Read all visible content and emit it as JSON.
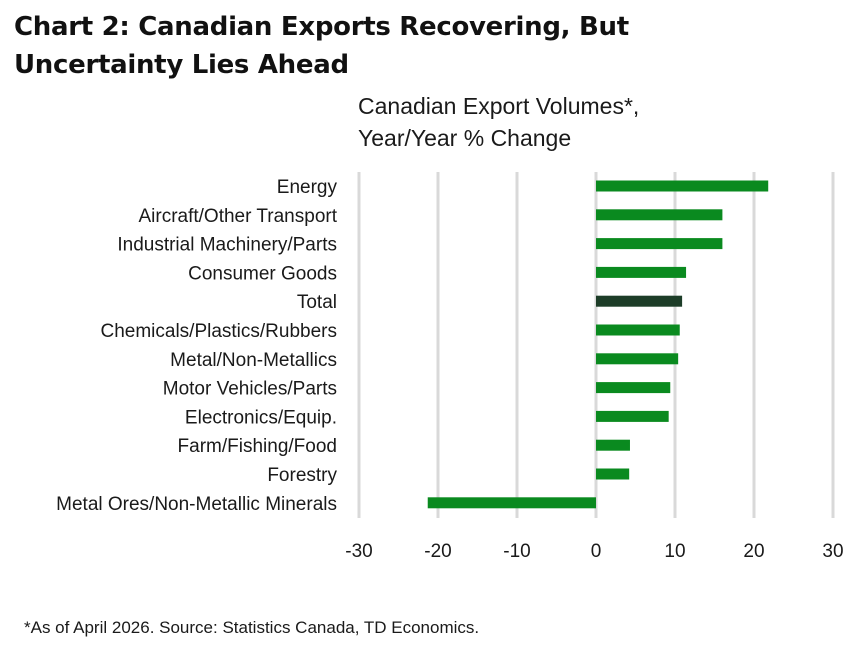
{
  "title_lines": [
    "Chart 2: Canadian Exports Recovering, But",
    "Uncertainty Lies Ahead"
  ],
  "subtitle_lines": [
    "Canadian Export Volumes*,",
    "Year/Year % Change"
  ],
  "footnote": "*As of April 2026. Source: Statistics Canada, TD Economics.",
  "colors": {
    "bar": "#0a8a1f",
    "highlight": "#1d3d28",
    "grid": "#d9d9d9"
  },
  "chart_data": {
    "type": "bar",
    "orientation": "horizontal",
    "title": "Chart 2: Canadian Exports Recovering, But Uncertainty Lies Ahead",
    "subtitle": "Canadian Export Volumes*, Year/Year % Change",
    "categories": [
      "Energy",
      "Aircraft/Other Transport",
      "Industrial Machinery/Parts",
      "Consumer Goods",
      "Total",
      "Chemicals/Plastics/Rubbers",
      "Metal/Non-Metallics",
      "Motor Vehicles/Parts",
      "Electronics/Equip.",
      "Farm/Fishing/Food",
      "Forestry",
      "Metal Ores/Non-Metallic Minerals"
    ],
    "values": [
      21.8,
      16.0,
      16.0,
      11.4,
      10.9,
      10.6,
      10.4,
      9.4,
      9.2,
      4.3,
      4.2,
      -21.3
    ],
    "highlight": "Total",
    "xlim": [
      -30,
      30
    ],
    "xticks": [
      -30,
      -20,
      -10,
      0,
      10,
      20,
      30
    ],
    "grid": true,
    "legend": false
  }
}
